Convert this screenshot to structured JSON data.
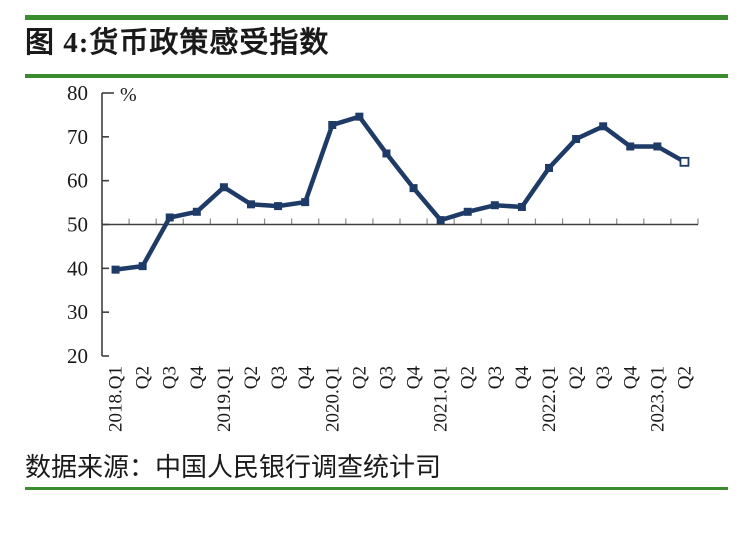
{
  "theme": {
    "accent_green": "#3a8c2e",
    "axis_color": "#3f3f3f",
    "tick_gray": "#8a8a8a",
    "text_color": "#1a1a1a"
  },
  "chart_data": {
    "type": "line",
    "title": "图 4:货币政策感受指数",
    "source_note": "数据来源：中国人民银行调查统计司",
    "unit_label": "%",
    "xlabel": "",
    "ylabel": "%",
    "ylim": [
      20,
      80
    ],
    "ytick_interval": 10,
    "x_axis_cross": 50,
    "grid": false,
    "legend_position": "none",
    "line_color": "#1e3a66",
    "marker": "square",
    "last_marker_hollow": true,
    "categories": [
      "2018.Q1",
      "Q2",
      "Q3",
      "Q4",
      "2019.Q1",
      "Q2",
      "Q3",
      "Q4",
      "2020.Q1",
      "Q2",
      "Q3",
      "Q4",
      "2021.Q1",
      "Q2",
      "Q3",
      "Q4",
      "2022.Q1",
      "Q2",
      "Q3",
      "Q4",
      "2023.Q1",
      "Q2"
    ],
    "series": [
      {
        "name": "货币政策感受指数",
        "values": [
          39.7,
          40.5,
          51.6,
          52.9,
          58.5,
          54.6,
          54.2,
          55.1,
          72.7,
          74.6,
          66.2,
          58.3,
          51.0,
          52.9,
          54.4,
          54.0,
          62.9,
          69.5,
          72.4,
          67.8,
          67.8,
          64.3
        ]
      }
    ]
  }
}
